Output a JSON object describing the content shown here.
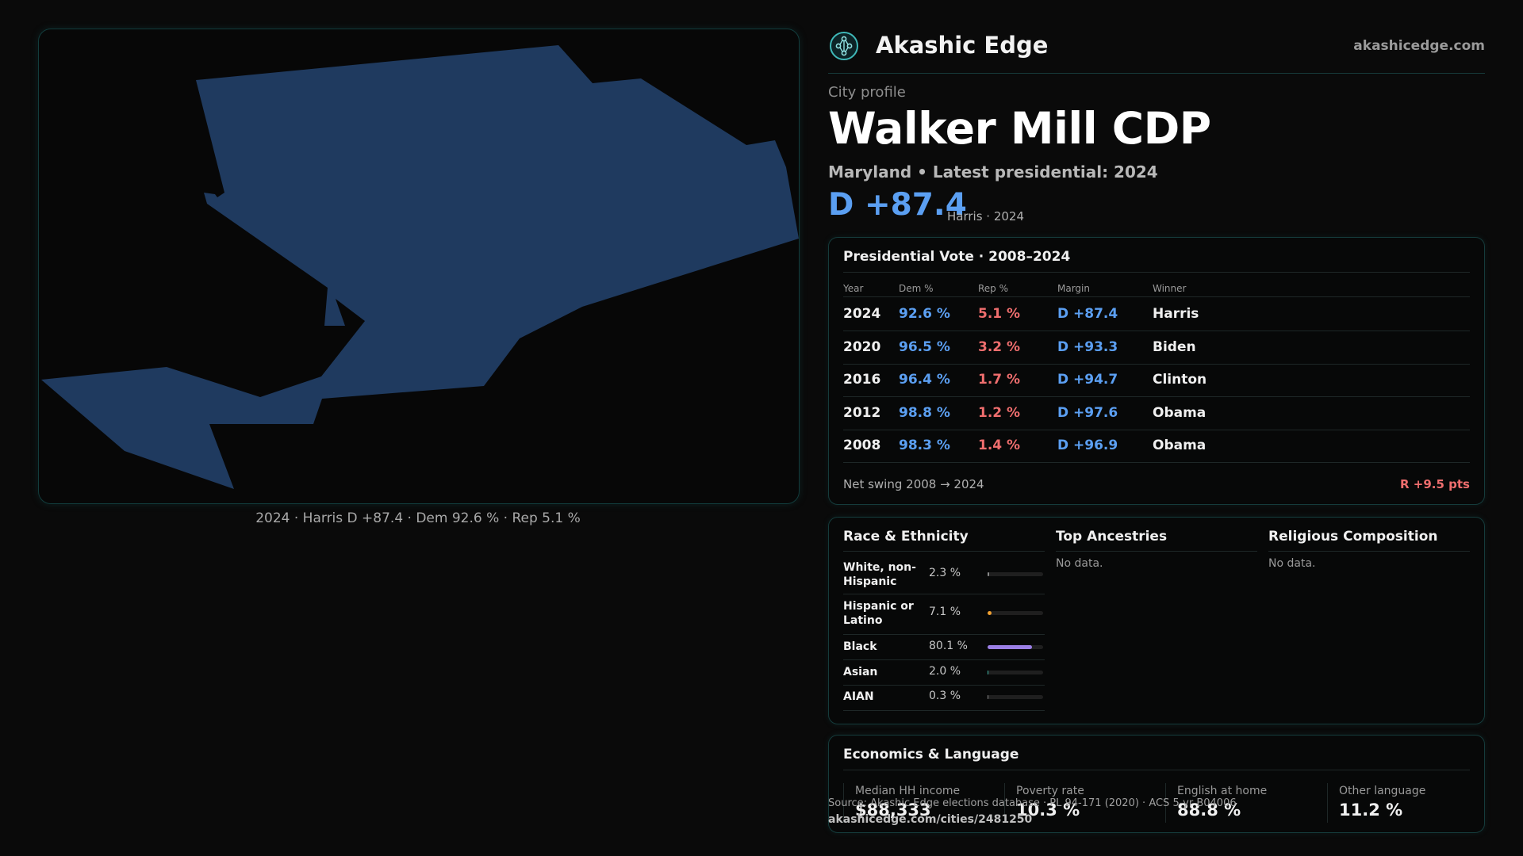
{
  "map": {
    "caption": "2024 · Harris D +87.4 · Dem 92.6 % · Rep 5.1 %",
    "fill_color": "#1f3a5f"
  },
  "brand": {
    "name": "Akashic Edge",
    "url": "akashicedge.com",
    "logo_icon": "tree-of-life-icon"
  },
  "profile": {
    "kicker": "City profile",
    "title": "Walker Mill CDP",
    "subline": "Maryland • Latest presidential: 2024",
    "margin": "D +87.4",
    "margin_note": "Harris · 2024"
  },
  "vote": {
    "title": "Presidential Vote · 2008–2024",
    "headers": [
      "Year",
      "Dem %",
      "Rep %",
      "Margin",
      "Winner"
    ],
    "rows": [
      {
        "year": "2024",
        "dem": "92.6 %",
        "rep": "5.1 %",
        "margin": "D +87.4",
        "winner": "Harris"
      },
      {
        "year": "2020",
        "dem": "96.5 %",
        "rep": "3.2 %",
        "margin": "D +93.3",
        "winner": "Biden"
      },
      {
        "year": "2016",
        "dem": "96.4 %",
        "rep": "1.7 %",
        "margin": "D +94.7",
        "winner": "Clinton"
      },
      {
        "year": "2012",
        "dem": "98.8 %",
        "rep": "1.2 %",
        "margin": "D +97.6",
        "winner": "Obama"
      },
      {
        "year": "2008",
        "dem": "98.3 %",
        "rep": "1.4 %",
        "margin": "D +96.9",
        "winner": "Obama"
      }
    ],
    "swing_label": "Net swing 2008 → 2024",
    "swing_value": "R +9.5 pts",
    "colors": {
      "dem": "#5b9ff2",
      "rep": "#ef6e6e"
    }
  },
  "race": {
    "title": "Race & Ethnicity",
    "rows": [
      {
        "name": "White, non-Hispanic",
        "pct": "2.3 %",
        "value": 2.3,
        "color": "#8a8a8a"
      },
      {
        "name": "Hispanic or Latino",
        "pct": "7.1 %",
        "value": 7.1,
        "color": "#f0a030"
      },
      {
        "name": "Black",
        "pct": "80.1 %",
        "value": 80.1,
        "color": "#9b7fe6"
      },
      {
        "name": "Asian",
        "pct": "2.0 %",
        "value": 2.0,
        "color": "#3fb8a8"
      },
      {
        "name": "AIAN",
        "pct": "0.3 %",
        "value": 0.3,
        "color": "#8a8a8a"
      }
    ]
  },
  "ancestries": {
    "title": "Top Ancestries",
    "empty": "No data."
  },
  "religion": {
    "title": "Religious Composition",
    "empty": "No data."
  },
  "economics": {
    "title": "Economics & Language",
    "stats": [
      {
        "label": "Median HH income",
        "value": "$88,333"
      },
      {
        "label": "Poverty rate",
        "value": "10.3 %"
      },
      {
        "label": "English at home",
        "value": "88.8 %"
      },
      {
        "label": "Other language",
        "value": "11.2 %"
      }
    ]
  },
  "footer": {
    "source": "Source: Akashic Edge elections database · PL 94-171 (2020) · ACS 5-yr B04006",
    "permalink": "akashicedge.com/cities/2481250"
  }
}
